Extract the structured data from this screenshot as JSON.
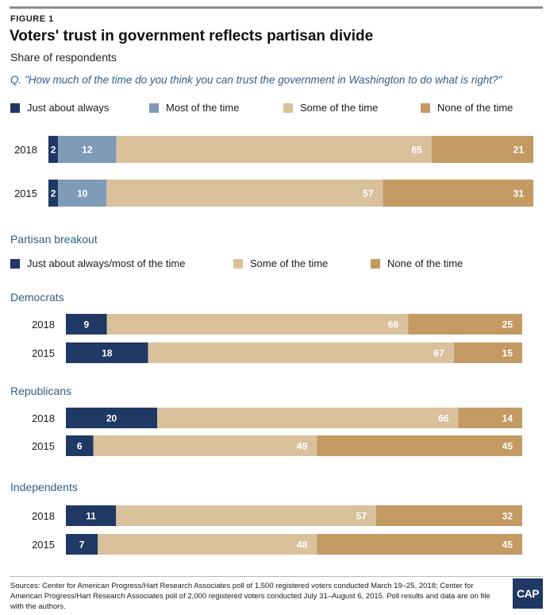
{
  "figure_label": "FIGURE 1",
  "title": "Voters' trust in government reflects partisan divide",
  "subtitle": "Share of respondents",
  "question": "Q. \"How much of the time do you think you can trust the government in Washington to do what is right?\"",
  "colors": {
    "navy": "#1f3864",
    "steel": "#7f9bb8",
    "tan": "#d9c19c",
    "brown": "#c49a63"
  },
  "legend_overall": [
    {
      "label": "Just about always",
      "color": "#1f3864"
    },
    {
      "label": "Most of the time",
      "color": "#7f9bb8"
    },
    {
      "label": "Some of the time",
      "color": "#d9c19c"
    },
    {
      "label": "None of the time",
      "color": "#c49a63"
    }
  ],
  "partisan_title": "Partisan breakout",
  "legend_partisan": [
    {
      "label": "Just about always/most of the time",
      "color": "#1f3864"
    },
    {
      "label": "Some of the time",
      "color": "#d9c19c"
    },
    {
      "label": "None of the time",
      "color": "#c49a63"
    }
  ],
  "chart_data": [
    {
      "type": "bar",
      "orientation": "horizontal",
      "stacked": true,
      "categories": [
        "2018",
        "2015"
      ],
      "series": [
        {
          "name": "Just about always",
          "values": [
            2,
            2
          ],
          "color": "#1f3864"
        },
        {
          "name": "Most of the time",
          "values": [
            12,
            10
          ],
          "color": "#7f9bb8"
        },
        {
          "name": "Some of the time",
          "values": [
            65,
            57
          ],
          "color": "#d9c19c"
        },
        {
          "name": "None of the time",
          "values": [
            21,
            31
          ],
          "color": "#c49a63"
        }
      ]
    },
    {
      "type": "bar",
      "orientation": "horizontal",
      "stacked": true,
      "title": "Democrats",
      "categories": [
        "2018",
        "2015"
      ],
      "series": [
        {
          "name": "Just about always/most of the time",
          "values": [
            9,
            18
          ],
          "color": "#1f3864"
        },
        {
          "name": "Some of the time",
          "values": [
            66,
            67
          ],
          "color": "#d9c19c"
        },
        {
          "name": "None of the time",
          "values": [
            25,
            15
          ],
          "color": "#c49a63"
        }
      ]
    },
    {
      "type": "bar",
      "orientation": "horizontal",
      "stacked": true,
      "title": "Republicans",
      "categories": [
        "2018",
        "2015"
      ],
      "series": [
        {
          "name": "Just about always/most of the time",
          "values": [
            20,
            6
          ],
          "color": "#1f3864"
        },
        {
          "name": "Some of the time",
          "values": [
            66,
            49
          ],
          "color": "#d9c19c"
        },
        {
          "name": "None of the time",
          "values": [
            14,
            45
          ],
          "color": "#c49a63"
        }
      ]
    },
    {
      "type": "bar",
      "orientation": "horizontal",
      "stacked": true,
      "title": "Independents",
      "categories": [
        "2018",
        "2015"
      ],
      "series": [
        {
          "name": "Just about always/most of the time",
          "values": [
            11,
            7
          ],
          "color": "#1f3864"
        },
        {
          "name": "Some of the time",
          "values": [
            57,
            48
          ],
          "color": "#d9c19c"
        },
        {
          "name": "None of the time",
          "values": [
            32,
            45
          ],
          "color": "#c49a63"
        }
      ]
    }
  ],
  "sources": "Sources: Center for American Progress/Hart Research Associates poll of 1,500 registered voters conducted March 19–25, 2018; Center for American Progress/Hart Research Associates poll of 2,000 registered voters conducted July 31–August 6, 2015. Poll results and data are on file with the authors.",
  "logo_text": "CAP"
}
